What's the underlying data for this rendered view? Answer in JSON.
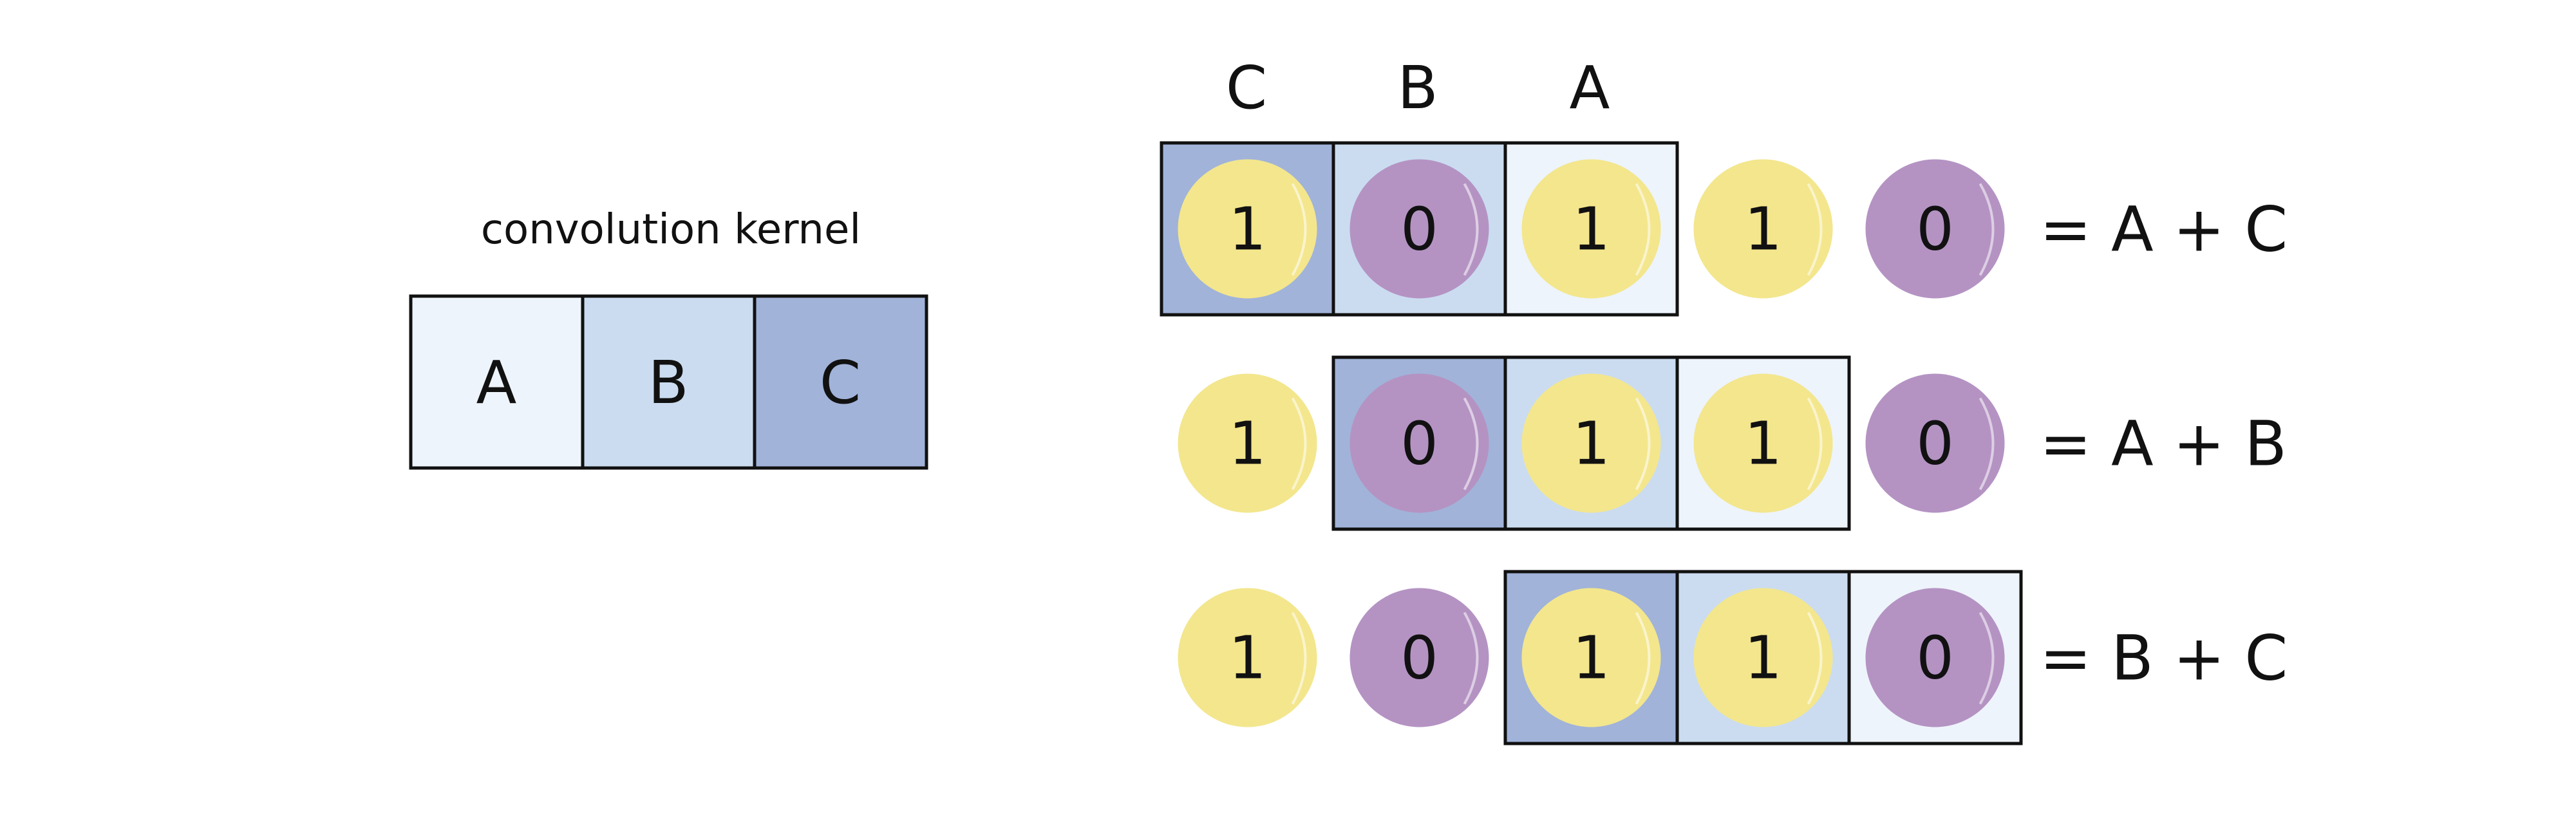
{
  "kernel": {
    "title": "convolution kernel",
    "cells": [
      {
        "label": "A",
        "color": "#eef4fb"
      },
      {
        "label": "B",
        "color": "#cbdcf0"
      },
      {
        "label": "C",
        "color": "#a1b3d9"
      }
    ]
  },
  "column_labels": [
    "C",
    "B",
    "A"
  ],
  "input_sequence": [
    {
      "value": "1",
      "color": "#f3e68d"
    },
    {
      "value": "0",
      "color": "#b493c3"
    },
    {
      "value": "1",
      "color": "#f3e68d"
    },
    {
      "value": "1",
      "color": "#f3e68d"
    },
    {
      "value": "0",
      "color": "#b493c3"
    }
  ],
  "rows": [
    {
      "offset": 0,
      "result": "= A + C"
    },
    {
      "offset": 1,
      "result": "= A + B"
    },
    {
      "offset": 2,
      "result": "= B + C"
    }
  ]
}
